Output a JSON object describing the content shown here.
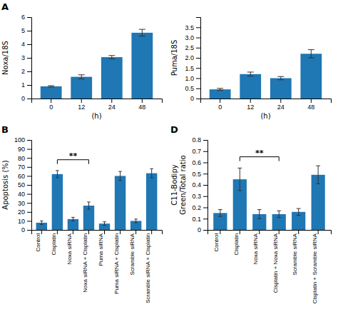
{
  "chart_data": [
    {
      "type": "bar",
      "title": "A",
      "categories": [
        "0",
        "12",
        "24",
        "48"
      ],
      "values": [
        0.9,
        1.6,
        3.05,
        4.85
      ],
      "errors": [
        0.05,
        0.15,
        0.12,
        0.25
      ],
      "x_label": "(h)",
      "y_label": "Noxa/18S",
      "ylim": [
        0,
        6
      ],
      "yticks": [
        0,
        1,
        2,
        3,
        4,
        5,
        6
      ]
    },
    {
      "type": "bar",
      "categories": [
        "0",
        "12",
        "24",
        "48"
      ],
      "values": [
        0.45,
        1.2,
        1.0,
        2.2
      ],
      "errors": [
        0.05,
        0.1,
        0.08,
        0.2
      ],
      "x_label": "(h)",
      "y_label": "Puma/18S",
      "ylim": [
        0,
        4
      ],
      "yticks": [
        0,
        0.5,
        {
          "value": 1.0,
          "label": "1.0"
        },
        1.5,
        {
          "value": 2.0,
          "label": "2.0"
        },
        2.5,
        {
          "value": 3.0,
          "label": "3.0"
        },
        3.5
      ]
    },
    {
      "type": "bar",
      "title": "B",
      "categories": [
        "Control",
        "Cisplatin",
        "Noxa siRNA",
        "Noxa siRNA + Cisplatin",
        "Puma siRNA",
        "Puma siRNA + Cisplatin",
        "Scramble siRNA",
        "Scramble siRNA + Cisplatin"
      ],
      "values": [
        8,
        62,
        12,
        27,
        7,
        60,
        10,
        63
      ],
      "errors": [
        2,
        4,
        2,
        4,
        2,
        5,
        2,
        5
      ],
      "y_label": "Apoptosis (%)",
      "ylim": [
        0,
        100
      ],
      "yticks": [
        0,
        10,
        20,
        30,
        40,
        50,
        60,
        70,
        80,
        90,
        100
      ],
      "annotations": [
        {
          "text": "**",
          "from": "Cisplatin",
          "to": "Noxa siRNA + Cisplatin",
          "y": 78
        }
      ]
    },
    {
      "type": "bar",
      "title": "D",
      "categories": [
        "Control",
        "Cisplatin",
        "Noxa siRNA",
        "Cisplatin + Noxa siRNA",
        "Scramble siRNA",
        "Cisplatin + Scramble siRNA"
      ],
      "values": [
        0.15,
        0.45,
        0.14,
        0.14,
        0.16,
        0.49
      ],
      "errors": [
        0.03,
        0.1,
        0.04,
        0.03,
        0.03,
        0.08
      ],
      "y_label": "C11-Bodipy\nGreen/Total ratio",
      "ylim": [
        0,
        0.8
      ],
      "yticks": [
        0,
        0.1,
        0.2,
        0.3,
        0.4,
        0.5,
        0.6,
        0.7,
        0.8
      ],
      "annotations": [
        {
          "text": "**",
          "from": "Cisplatin",
          "to": "Cisplatin + Noxa siRNA",
          "y": 0.65
        }
      ]
    }
  ]
}
